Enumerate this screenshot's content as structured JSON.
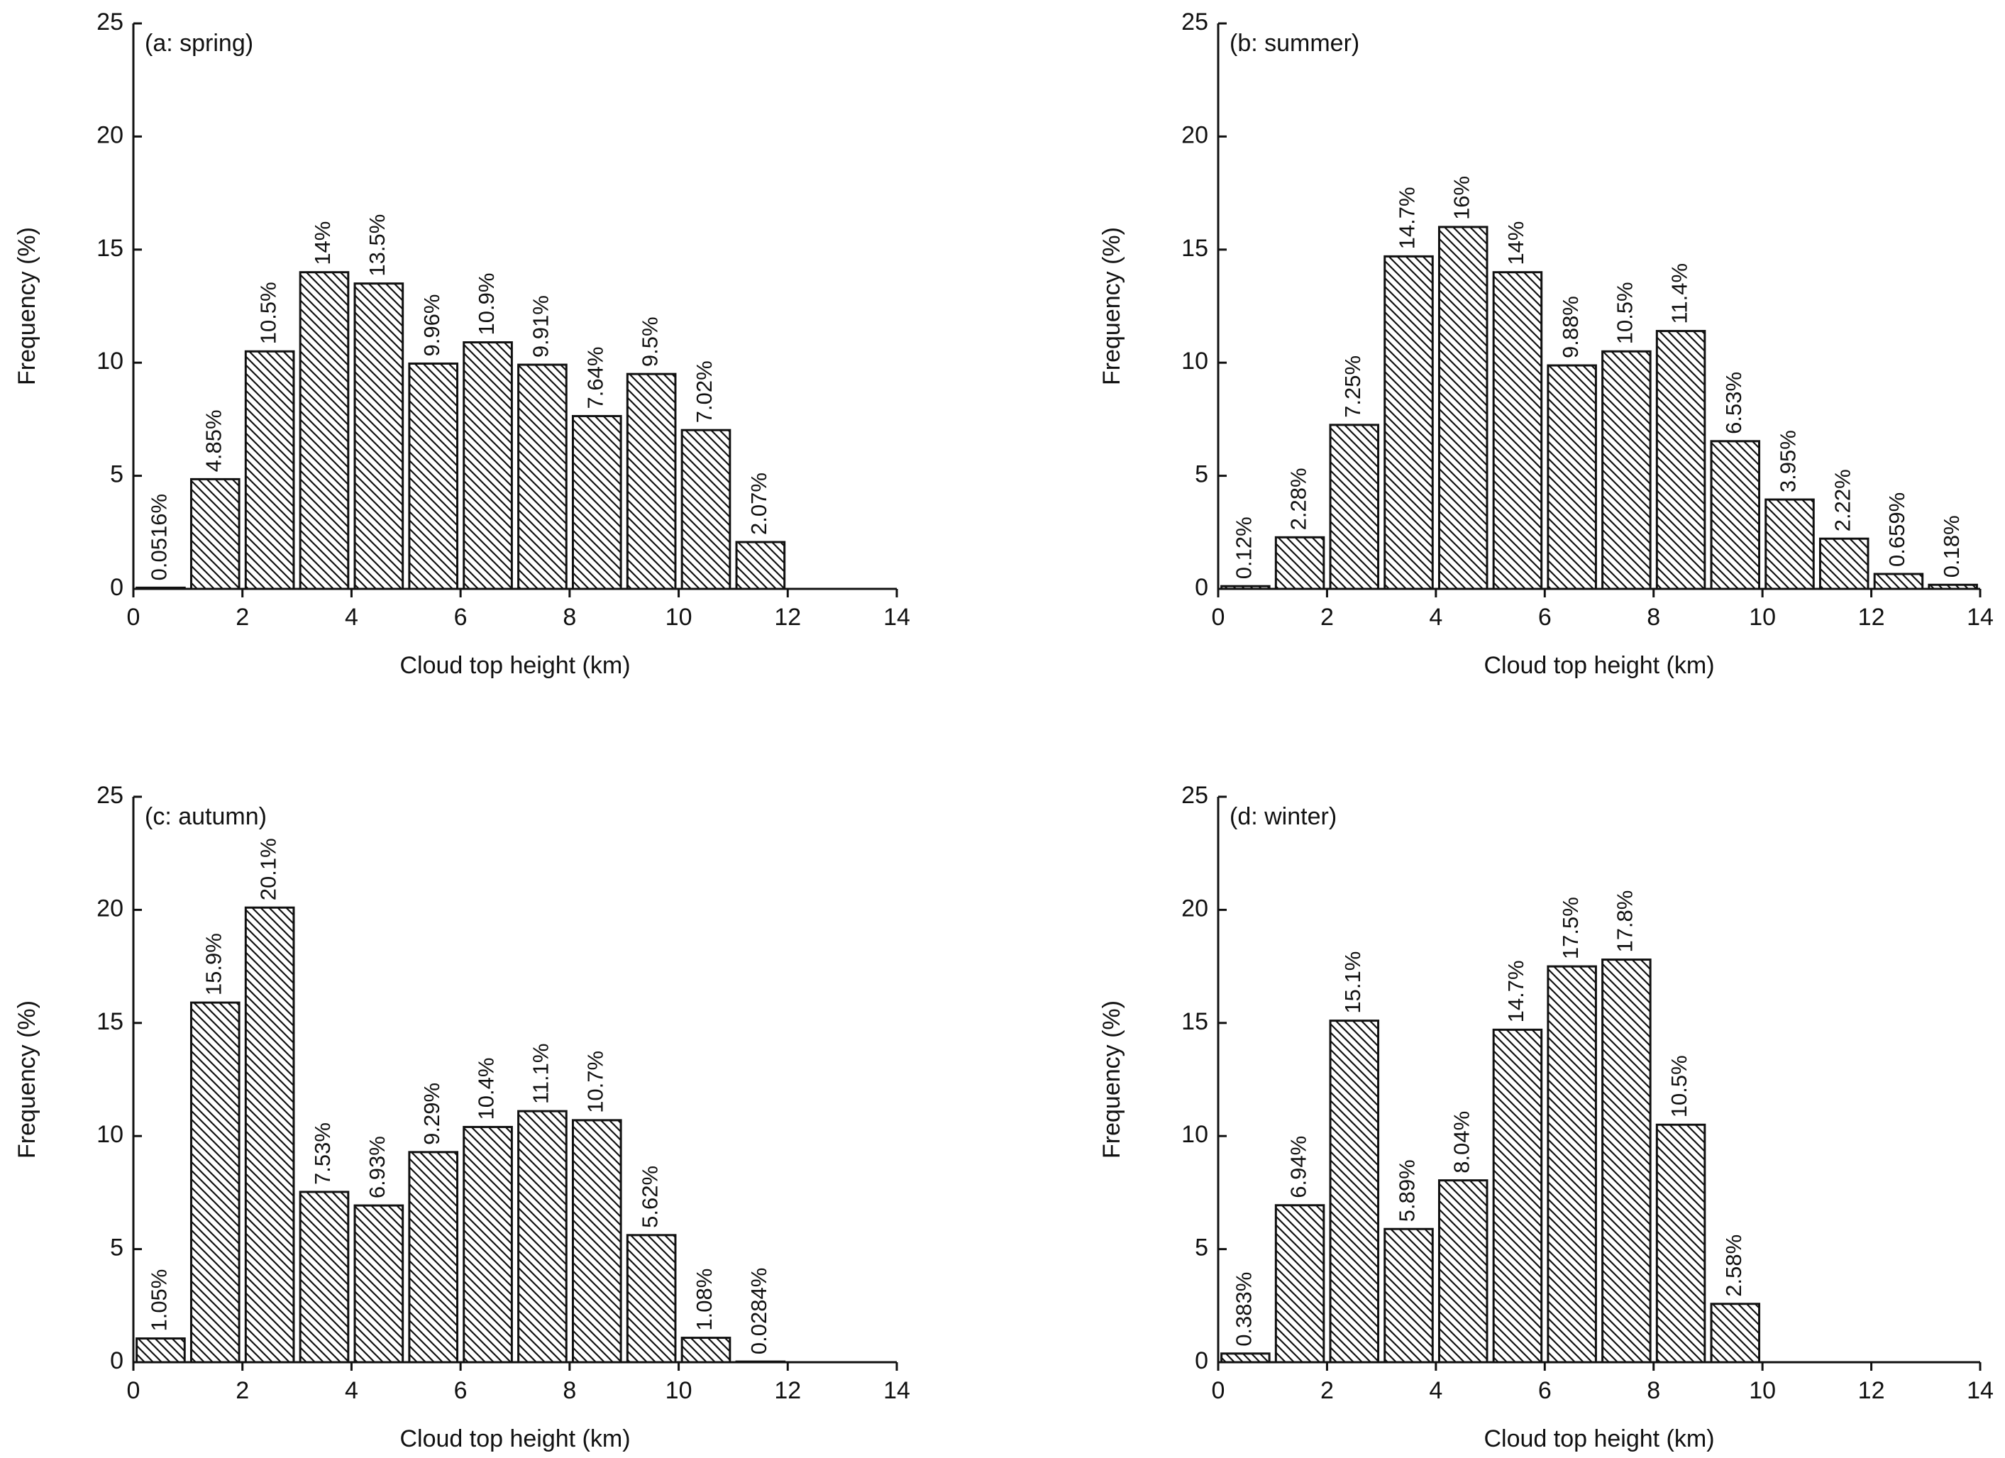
{
  "chart_data": [
    {
      "type": "histogram",
      "title": "(a: spring)",
      "xlabel": "Cloud top height (km)",
      "ylabel": "Frequency (%)",
      "bins": [
        0,
        1,
        2,
        3,
        4,
        5,
        6,
        7,
        8,
        9,
        10,
        11,
        12
      ],
      "values": [
        0.0516,
        4.85,
        10.5,
        14,
        13.5,
        9.96,
        10.9,
        9.91,
        7.64,
        9.5,
        7.02,
        2.07
      ],
      "value_labels": [
        "0.0516%",
        "4.85%",
        "10.5%",
        "14%",
        "13.5%",
        "9.96%",
        "10.9%",
        "9.91%",
        "7.64%",
        "9.5%",
        "7.02%",
        "2.07%"
      ],
      "xlim": [
        0,
        14
      ],
      "ylim": [
        0,
        25
      ],
      "xticks": [
        0,
        2,
        4,
        6,
        8,
        10,
        12,
        14
      ],
      "yticks": [
        0,
        5,
        10,
        15,
        20,
        25
      ]
    },
    {
      "type": "histogram",
      "title": "(b: summer)",
      "xlabel": "Cloud top height (km)",
      "ylabel": "Frequency (%)",
      "bins": [
        0,
        1,
        2,
        3,
        4,
        5,
        6,
        7,
        8,
        9,
        10,
        11,
        12,
        13,
        14
      ],
      "values": [
        0.12,
        2.28,
        7.25,
        14.7,
        16,
        14,
        9.88,
        10.5,
        11.4,
        6.53,
        3.95,
        2.22,
        0.659,
        0.18
      ],
      "value_labels": [
        "0.12%",
        "2.28%",
        "7.25%",
        "14.7%",
        "16%",
        "14%",
        "9.88%",
        "10.5%",
        "11.4%",
        "6.53%",
        "3.95%",
        "2.22%",
        "0.659%",
        "0.18%"
      ],
      "xlim": [
        0,
        14
      ],
      "ylim": [
        0,
        25
      ],
      "xticks": [
        0,
        2,
        4,
        6,
        8,
        10,
        12,
        14
      ],
      "yticks": [
        0,
        5,
        10,
        15,
        20,
        25
      ]
    },
    {
      "type": "histogram",
      "title": "(c: autumn)",
      "xlabel": "Cloud top height (km)",
      "ylabel": "Frequency (%)",
      "bins": [
        0,
        1,
        2,
        3,
        4,
        5,
        6,
        7,
        8,
        9,
        10,
        11,
        12
      ],
      "values": [
        1.05,
        15.9,
        20.1,
        7.53,
        6.93,
        9.29,
        10.4,
        11.1,
        10.7,
        5.62,
        1.08,
        0.0284
      ],
      "value_labels": [
        "1.05%",
        "15.9%",
        "20.1%",
        "7.53%",
        "6.93%",
        "9.29%",
        "10.4%",
        "11.1%",
        "10.7%",
        "5.62%",
        "1.08%",
        "0.0284%"
      ],
      "xlim": [
        0,
        14
      ],
      "ylim": [
        0,
        25
      ],
      "xticks": [
        0,
        2,
        4,
        6,
        8,
        10,
        12,
        14
      ],
      "yticks": [
        0,
        5,
        10,
        15,
        20,
        25
      ]
    },
    {
      "type": "histogram",
      "title": "(d: winter)",
      "xlabel": "Cloud top height (km)",
      "ylabel": "Frequency (%)",
      "bins": [
        0,
        1,
        2,
        3,
        4,
        5,
        6,
        7,
        8,
        9,
        10
      ],
      "values": [
        0.383,
        6.94,
        15.1,
        5.89,
        8.04,
        14.7,
        17.5,
        17.8,
        10.5,
        2.58
      ],
      "value_labels": [
        "0.383%",
        "6.94%",
        "15.1%",
        "5.89%",
        "8.04%",
        "14.7%",
        "17.5%",
        "17.8%",
        "10.5%",
        "2.58%"
      ],
      "xlim": [
        0,
        14
      ],
      "ylim": [
        0,
        25
      ],
      "xticks": [
        0,
        2,
        4,
        6,
        8,
        10,
        12,
        14
      ],
      "yticks": [
        0,
        5,
        10,
        15,
        20,
        25
      ]
    }
  ]
}
